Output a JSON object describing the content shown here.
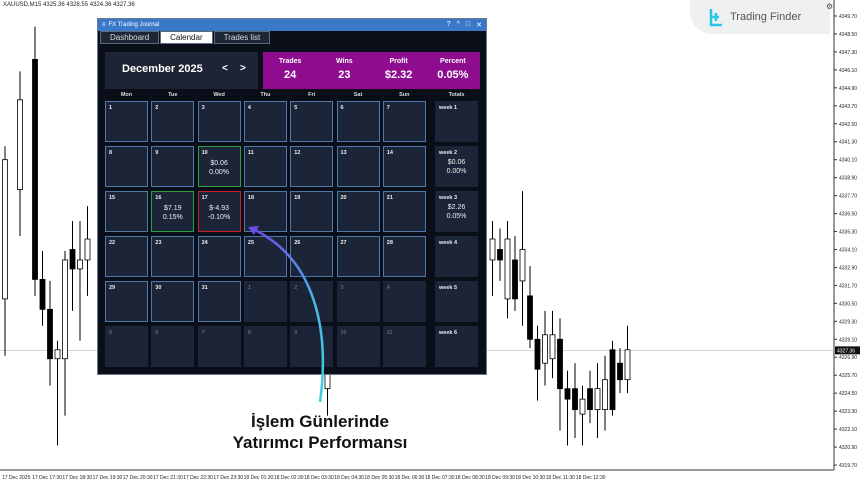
{
  "chart_header": {
    "symbol": "XAUUSD,M15",
    "ohlc": "4325.36 4328.55 4324.36 4327.36"
  },
  "logo": {
    "text": "Trading Finder"
  },
  "chart_data": {
    "type": "candlestick",
    "price_ticks": [
      "4349.70",
      "4348.50",
      "4347.30",
      "4346.10",
      "4344.90",
      "4343.70",
      "4342.50",
      "4341.30",
      "4340.10",
      "4338.90",
      "4337.70",
      "4336.50",
      "4335.30",
      "4334.10",
      "4332.90",
      "4331.70",
      "4330.50",
      "4329.30",
      "4328.10",
      "4326.90",
      "4325.70",
      "4324.50",
      "4323.30",
      "4322.10",
      "4320.90",
      "4319.70"
    ],
    "current_price": "4327.36",
    "ylim": [
      4319.7,
      4349.7
    ],
    "time_ticks": [
      "17 Dec 2025",
      "17 Dec 17:30",
      "17 Dec 18:30",
      "17 Dec 19:30",
      "17 Dec 20:30",
      "17 Dec 21:30",
      "17 Dec 22:30",
      "17 Dec 23:30",
      "18 Dec 01:30",
      "18 Dec 02:30",
      "18 Dec 03:30",
      "18 Dec 04:30",
      "18 Dec 05:30",
      "18 Dec 06:30",
      "18 Dec 07:30",
      "18 Dec 08:30",
      "18 Dec 09:30",
      "18 Dec 10:30",
      "18 Dec 11:30",
      "18 Dec 12:30"
    ],
    "candles": [
      {
        "i": 0,
        "o": 4330.8,
        "h": 4341.0,
        "l": 4327.0,
        "c": 4340.1
      },
      {
        "i": 2,
        "o": 4338.1,
        "h": 4346.0,
        "l": 4335.0,
        "c": 4344.1
      },
      {
        "i": 4,
        "o": 4346.8,
        "h": 4349.0,
        "l": 4331.0,
        "c": 4332.1
      },
      {
        "i": 5,
        "o": 4332.1,
        "h": 4334.0,
        "l": 4329.0,
        "c": 4330.1
      },
      {
        "i": 6,
        "o": 4330.1,
        "h": 4332.0,
        "l": 4325.0,
        "c": 4326.8
      },
      {
        "i": 7,
        "o": 4326.8,
        "h": 4328.0,
        "l": 4321.0,
        "c": 4327.4
      },
      {
        "i": 8,
        "o": 4326.8,
        "h": 4334.0,
        "l": 4323.0,
        "c": 4333.4
      },
      {
        "i": 9,
        "o": 4334.1,
        "h": 4336.0,
        "l": 4330.0,
        "c": 4332.8
      },
      {
        "i": 10,
        "o": 4332.8,
        "h": 4336.0,
        "l": 4328.0,
        "c": 4333.4
      },
      {
        "i": 11,
        "o": 4333.4,
        "h": 4337.0,
        "l": 4331.0,
        "c": 4334.8
      },
      {
        "i": 43,
        "o": 4324.8,
        "h": 4327.0,
        "l": 4323.0,
        "c": 4326.1
      },
      {
        "i": 65,
        "o": 4333.4,
        "h": 4336.0,
        "l": 4331.0,
        "c": 4334.8
      },
      {
        "i": 66,
        "o": 4334.1,
        "h": 4335.5,
        "l": 4332.0,
        "c": 4333.4
      },
      {
        "i": 67,
        "o": 4330.8,
        "h": 4336.0,
        "l": 4329.5,
        "c": 4334.8
      },
      {
        "i": 68,
        "o": 4333.4,
        "h": 4335.0,
        "l": 4330.0,
        "c": 4330.8
      },
      {
        "i": 69,
        "o": 4332.0,
        "h": 4338.0,
        "l": 4329.0,
        "c": 4334.1
      },
      {
        "i": 70,
        "o": 4331.0,
        "h": 4333.0,
        "l": 4327.5,
        "c": 4328.1
      },
      {
        "i": 71,
        "o": 4328.1,
        "h": 4329.0,
        "l": 4324.0,
        "c": 4326.1
      },
      {
        "i": 72,
        "o": 4326.5,
        "h": 4330.0,
        "l": 4325.0,
        "c": 4328.4
      },
      {
        "i": 73,
        "o": 4326.8,
        "h": 4330.0,
        "l": 4325.5,
        "c": 4328.4
      },
      {
        "i": 74,
        "o": 4328.1,
        "h": 4329.5,
        "l": 4322.0,
        "c": 4324.8
      },
      {
        "i": 75,
        "o": 4324.8,
        "h": 4326.0,
        "l": 4321.0,
        "c": 4324.1
      },
      {
        "i": 76,
        "o": 4324.8,
        "h": 4326.5,
        "l": 4321.5,
        "c": 4323.4
      },
      {
        "i": 77,
        "o": 4323.1,
        "h": 4325.0,
        "l": 4321.0,
        "c": 4324.1
      },
      {
        "i": 78,
        "o": 4324.8,
        "h": 4326.0,
        "l": 4322.5,
        "c": 4323.4
      },
      {
        "i": 79,
        "o": 4323.4,
        "h": 4326.5,
        "l": 4321.5,
        "c": 4324.8
      },
      {
        "i": 80,
        "o": 4323.4,
        "h": 4327.0,
        "l": 4322.0,
        "c": 4325.4
      },
      {
        "i": 81,
        "o": 4327.4,
        "h": 4328.0,
        "l": 4323.0,
        "c": 4323.4
      },
      {
        "i": 82,
        "o": 4326.5,
        "h": 4327.5,
        "l": 4324.5,
        "c": 4325.4
      },
      {
        "i": 83,
        "o": 4325.4,
        "h": 4329.0,
        "l": 4324.5,
        "c": 4327.4
      }
    ]
  },
  "window": {
    "title": "FX Trading Journal",
    "controls": [
      "?",
      "^",
      "□",
      "✕"
    ],
    "tabs": [
      {
        "label": "Dashboard"
      },
      {
        "label": "Calendar",
        "active": true
      },
      {
        "label": "Trades list"
      }
    ],
    "month": "December 2025",
    "prev": "<",
    "next": ">",
    "stats": [
      {
        "label": "Trades",
        "value": "24"
      },
      {
        "label": "Wins",
        "value": "23"
      },
      {
        "label": "Profit",
        "value": "$2.32"
      },
      {
        "label": "Percent",
        "value": "0.05%"
      }
    ],
    "stats_color": "#8e0c8e",
    "days": [
      "Mon",
      "Tue",
      "Wed",
      "Thu",
      "Fri",
      "Sat",
      "Sun"
    ],
    "totals_label": "Totals",
    "weeks": [
      {
        "label": "week 1",
        "cells": [
          {
            "d": "1"
          },
          {
            "d": "2"
          },
          {
            "d": "3"
          },
          {
            "d": "4"
          },
          {
            "d": "5"
          },
          {
            "d": "6"
          },
          {
            "d": "7"
          }
        ]
      },
      {
        "label": "week 2",
        "profit": "$0.06",
        "pct": "0.00%",
        "cells": [
          {
            "d": "8"
          },
          {
            "d": "9"
          },
          {
            "d": "10",
            "profit": "$0.06",
            "pct": "0.00%",
            "s": "pos"
          },
          {
            "d": "11"
          },
          {
            "d": "12"
          },
          {
            "d": "13"
          },
          {
            "d": "14"
          }
        ]
      },
      {
        "label": "week 3",
        "profit": "$2.26",
        "pct": "0.05%",
        "cells": [
          {
            "d": "15"
          },
          {
            "d": "16",
            "profit": "$7.19",
            "pct": "0.15%",
            "s": "pos"
          },
          {
            "d": "17",
            "profit": "$-4.93",
            "pct": "-0.10%",
            "s": "neg"
          },
          {
            "d": "18"
          },
          {
            "d": "19"
          },
          {
            "d": "20"
          },
          {
            "d": "21"
          }
        ]
      },
      {
        "label": "week 4",
        "cells": [
          {
            "d": "22"
          },
          {
            "d": "23"
          },
          {
            "d": "24"
          },
          {
            "d": "25"
          },
          {
            "d": "26"
          },
          {
            "d": "27"
          },
          {
            "d": "28"
          }
        ]
      },
      {
        "label": "week 5",
        "cells": [
          {
            "d": "29"
          },
          {
            "d": "30"
          },
          {
            "d": "31"
          },
          {
            "d": "1",
            "s": "off"
          },
          {
            "d": "2",
            "s": "off"
          },
          {
            "d": "3",
            "s": "off"
          },
          {
            "d": "4",
            "s": "off"
          }
        ]
      },
      {
        "label": "week 6",
        "cells": [
          {
            "d": "5",
            "s": "off"
          },
          {
            "d": "6",
            "s": "off"
          },
          {
            "d": "7",
            "s": "off"
          },
          {
            "d": "8",
            "s": "off"
          },
          {
            "d": "9",
            "s": "off"
          },
          {
            "d": "10",
            "s": "off"
          },
          {
            "d": "11",
            "s": "off"
          }
        ]
      }
    ]
  },
  "annotation": {
    "line1": "İşlem Günlerinde",
    "line2": "Yatırımcı Performansı"
  }
}
